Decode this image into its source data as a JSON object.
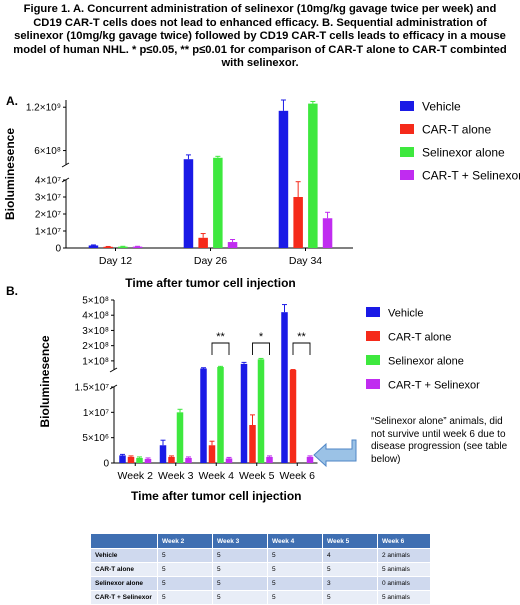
{
  "figure": {
    "caption": "Figure 1. A. Concurrent administration of selinexor (10mg/kg gavage twice per week) and CD19 CAR-T cells does not lead to enhanced efficacy. B. Sequential administration of selinexor (10mg/kg gavage twice) followed by CD19 CAR-T cells leads to efficacy in a mouse model of human NHL. * p≤0.05, ** p≤0.01 for comparison of CAR-T alone to CAR-T combinted with selinexor.",
    "note": "“Selinexor alone” animals, did not survive  until week 6 due to disease progression (see table below)"
  },
  "colors": {
    "vehicle": "#1a1ae6",
    "cart": "#f52a1a",
    "selinexor": "#3ee83e",
    "combo": "#c02cf0"
  },
  "chart_data": [
    {
      "panel": "A.",
      "type": "bar",
      "xlabel": "Time after tumor cell injection",
      "ylabel": "Bioluminesence",
      "categories": [
        "Day 12",
        "Day 26",
        "Day 34"
      ],
      "axis_break": {
        "lower_ylim": [
          0,
          40000000
        ],
        "upper_ylim": [
          400000000,
          1300000000
        ]
      },
      "lower_ticks": [
        "0",
        "1×10⁷",
        "2×10⁷",
        "3×10⁷",
        "4×10⁷"
      ],
      "upper_ticks": [
        "6×10⁸",
        "1.2×10⁹"
      ],
      "series": [
        {
          "name": "Vehicle",
          "values": [
            1500000,
            480000000,
            1150000000
          ],
          "errors": [
            300000,
            60000000,
            150000000
          ]
        },
        {
          "name": "CAR-T alone",
          "values": [
            700000,
            6000000,
            30000000
          ],
          "errors": [
            200000,
            2500000,
            9000000
          ]
        },
        {
          "name": "Selinexor alone",
          "values": [
            800000,
            500000000,
            1250000000
          ],
          "errors": [
            200000,
            20000000,
            30000000
          ]
        },
        {
          "name": "CAR-T + Selinexor",
          "values": [
            800000,
            3500000,
            17500000
          ],
          "errors": [
            200000,
            1500000,
            3500000
          ]
        }
      ]
    },
    {
      "panel": "B.",
      "type": "bar",
      "xlabel": "Time after tumor cell injection",
      "ylabel": "Bioluminesence",
      "categories": [
        "Week 2",
        "Week 3",
        "Week 4",
        "Week 5",
        "Week 6"
      ],
      "axis_break": {
        "lower_ylim": [
          0,
          15000000
        ],
        "upper_ylim": [
          40000000,
          500000000
        ]
      },
      "lower_ticks": [
        "0",
        "5×10⁶",
        "1×10⁷",
        "1.5×10⁷"
      ],
      "upper_ticks": [
        "1×10⁸",
        "2×10⁸",
        "3×10⁸",
        "4×10⁸",
        "5×10⁸"
      ],
      "series": [
        {
          "name": "Vehicle",
          "values": [
            1500000,
            3500000,
            50000000,
            80000000,
            420000000
          ],
          "errors": [
            200000,
            1000000,
            5000000,
            10000000,
            50000000
          ]
        },
        {
          "name": "CAR-T alone",
          "values": [
            1200000,
            1200000,
            3500000,
            7500000,
            40000000
          ],
          "errors": [
            200000,
            200000,
            800000,
            2000000,
            3000000
          ]
        },
        {
          "name": "Selinexor alone",
          "values": [
            1000000,
            10000000,
            60000000,
            110000000,
            null
          ],
          "errors": [
            200000,
            600000,
            4000000,
            6000000,
            null
          ]
        },
        {
          "name": "CAR-T + Selinexor",
          "values": [
            800000,
            1000000,
            900000,
            1200000,
            1200000
          ],
          "errors": [
            200000,
            200000,
            200000,
            200000,
            200000
          ]
        }
      ],
      "significance": [
        {
          "category": "Week 4",
          "label": "**"
        },
        {
          "category": "Week 5",
          "label": "*"
        },
        {
          "category": "Week 6",
          "label": "**"
        }
      ]
    }
  ],
  "table": {
    "headers": [
      "",
      "Week 2",
      "Week 3",
      "Week 4",
      "Week 5",
      "Week 6"
    ],
    "rows": [
      [
        "Vehicle",
        "5",
        "5",
        "5",
        "4",
        "2 animals"
      ],
      [
        "CAR-T alone",
        "5",
        "5",
        "5",
        "5",
        "5 animals"
      ],
      [
        "Selinexor alone",
        "5",
        "5",
        "5",
        "3",
        "0 animals"
      ],
      [
        "CAR-T + Selinexor",
        "5",
        "5",
        "5",
        "5",
        "5 animals"
      ]
    ]
  }
}
